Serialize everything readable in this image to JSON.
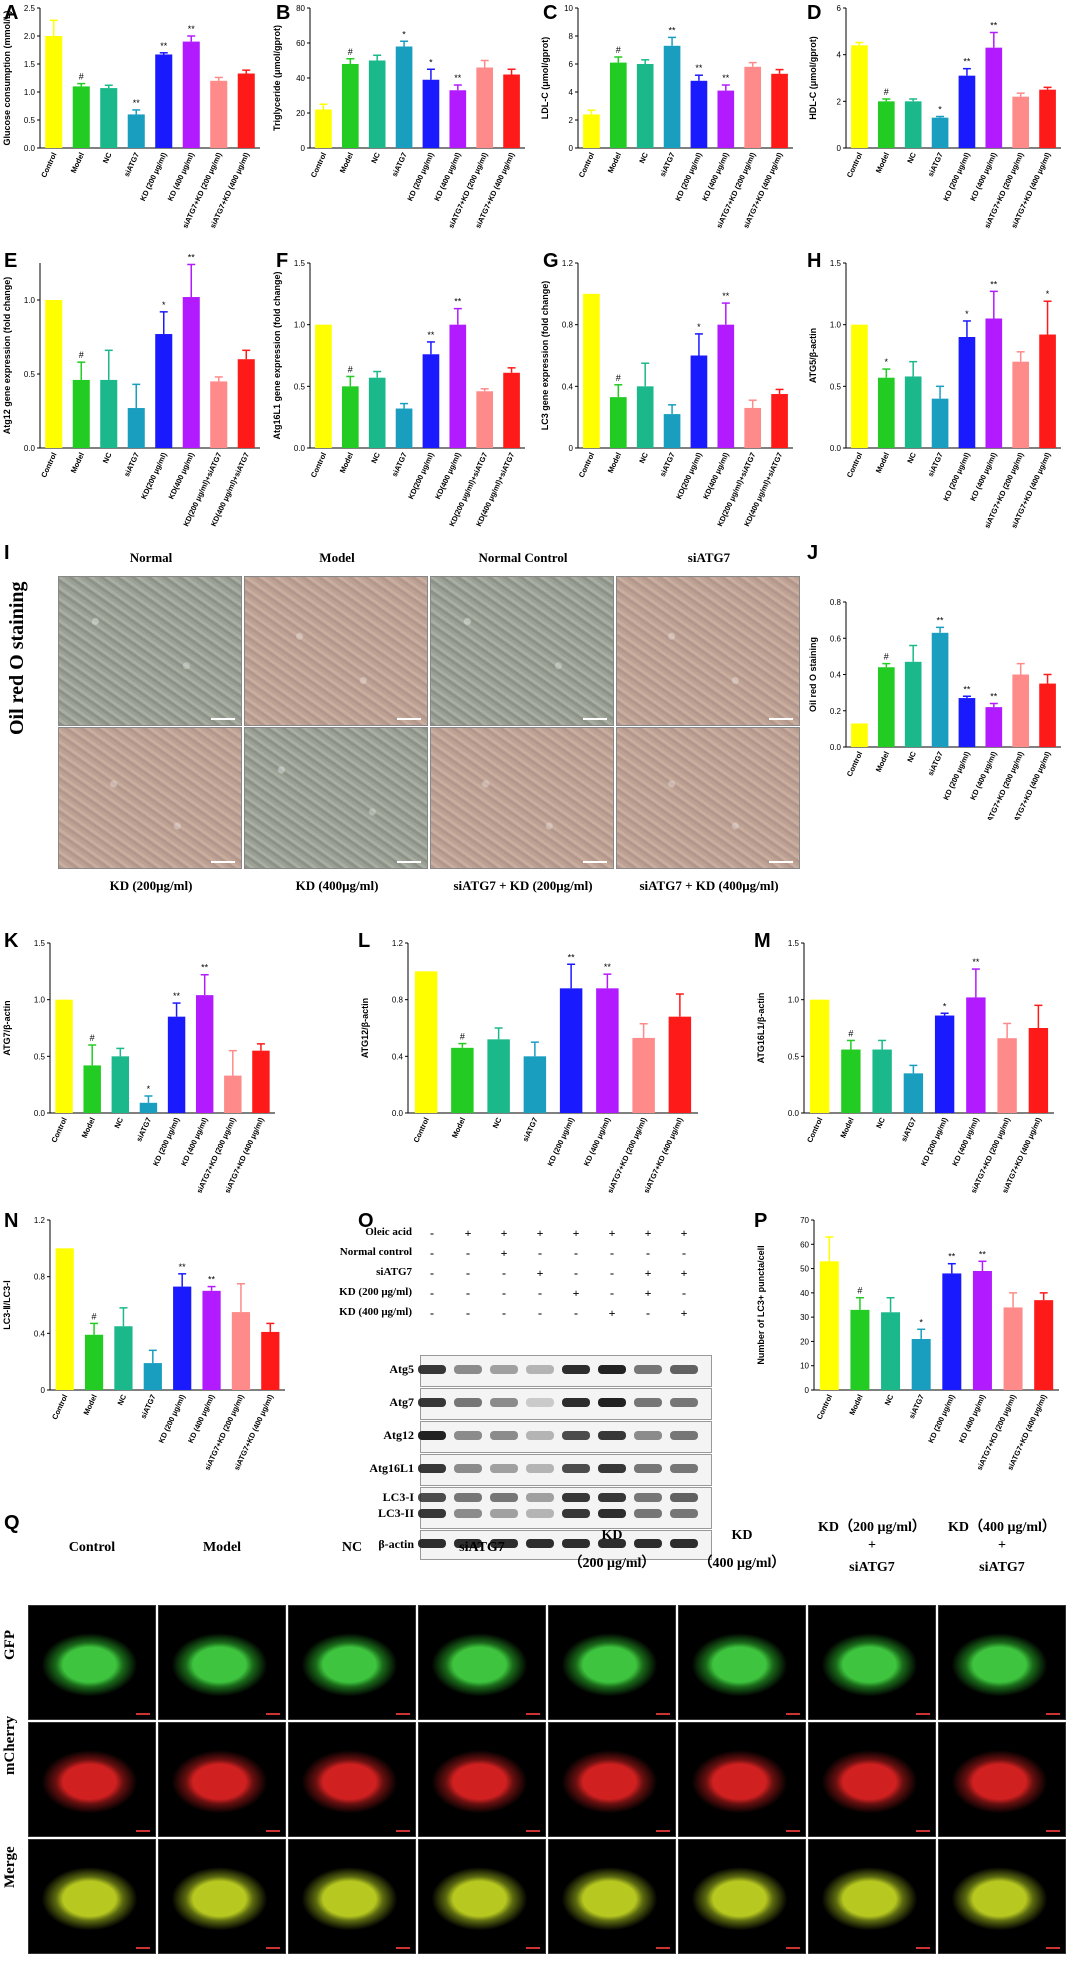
{
  "colors": [
    "#ffff00",
    "#22cc22",
    "#1ab88a",
    "#1a9ec0",
    "#1a1aff",
    "#b21aff",
    "#ff8a8a",
    "#ff1a1a"
  ],
  "panels": {
    "A": {
      "letter": "A"
    },
    "B": {
      "letter": "B"
    },
    "C": {
      "letter": "C"
    },
    "D": {
      "letter": "D"
    },
    "E": {
      "letter": "E"
    },
    "F": {
      "letter": "F"
    },
    "G": {
      "letter": "G"
    },
    "H": {
      "letter": "H"
    },
    "I": {
      "letter": "I"
    },
    "J": {
      "letter": "J"
    },
    "K": {
      "letter": "K"
    },
    "L": {
      "letter": "L"
    },
    "M": {
      "letter": "M"
    },
    "N": {
      "letter": "N"
    },
    "O": {
      "letter": "O"
    },
    "P": {
      "letter": "P"
    },
    "Q": {
      "letter": "Q"
    }
  },
  "chart_data": [
    {
      "panel": "A",
      "type": "bar",
      "ylabel": "Glucose consumption (mmol/L)",
      "ylim": [
        0,
        2.5
      ],
      "yticks": [
        "0.0",
        "0.5",
        "1.0",
        "1.5",
        "2.0",
        "2.5"
      ],
      "categories": [
        "Control",
        "Model",
        "NC",
        "siATG7",
        "KD (200 μg/ml)",
        "KD (400 μg/ml)",
        "siATG7+KD (200 μg/ml)",
        "siATG7+KD (400 μg/ml)"
      ],
      "values": [
        2.0,
        1.1,
        1.07,
        0.6,
        1.67,
        1.9,
        1.2,
        1.33
      ],
      "errors": [
        0.28,
        0.05,
        0.05,
        0.08,
        0.03,
        0.1,
        0.06,
        0.06
      ],
      "marks": [
        "",
        "#",
        "",
        "**",
        "**",
        "**",
        "",
        ""
      ]
    },
    {
      "panel": "B",
      "type": "bar",
      "ylabel": "Triglyceride (μmol/gprot)",
      "ylim": [
        0,
        80
      ],
      "yticks": [
        "0",
        "20",
        "40",
        "60",
        "80"
      ],
      "categories": [
        "Control",
        "Model",
        "NC",
        "siATG7",
        "KD (200 μg/ml)",
        "KD (400 μg/ml)",
        "siATG7+KD (200 μg/ml)",
        "siATG7+KD (400 μg/ml)"
      ],
      "values": [
        22,
        48,
        50,
        58,
        39,
        33,
        46,
        42
      ],
      "errors": [
        3,
        3,
        3,
        3,
        6,
        3,
        4,
        3
      ],
      "marks": [
        "",
        "#",
        "",
        "*",
        "*",
        "**",
        "",
        ""
      ]
    },
    {
      "panel": "C",
      "type": "bar",
      "ylabel": "LDL-C (μmol/gprot)",
      "ylim": [
        0,
        10
      ],
      "yticks": [
        "0",
        "2",
        "4",
        "6",
        "8",
        "10"
      ],
      "categories": [
        "Control",
        "Model",
        "NC",
        "siATG7",
        "KD (200 μg/ml)",
        "KD (400 μg/ml)",
        "siATG7+KD (200 μg/ml)",
        "siATG7+KD (400 μg/ml)"
      ],
      "values": [
        2.4,
        6.1,
        6.0,
        7.3,
        4.8,
        4.1,
        5.8,
        5.3
      ],
      "errors": [
        0.3,
        0.4,
        0.3,
        0.6,
        0.4,
        0.4,
        0.3,
        0.3
      ],
      "marks": [
        "",
        "#",
        "",
        "**",
        "**",
        "**",
        "",
        ""
      ]
    },
    {
      "panel": "D",
      "type": "bar",
      "ylabel": "HDL-C (μmol/gprot)",
      "ylim": [
        0,
        6
      ],
      "yticks": [
        "0",
        "2",
        "4",
        "6"
      ],
      "categories": [
        "Control",
        "Model",
        "NC",
        "siATG7",
        "KD (200 μg/ml)",
        "KD (400 μg/ml)",
        "siATG7+KD (200 μg/ml)",
        "siATG7+KD (400 μg/ml)"
      ],
      "values": [
        4.4,
        2.0,
        2.0,
        1.3,
        3.1,
        4.3,
        2.2,
        2.5
      ],
      "errors": [
        0.12,
        0.1,
        0.1,
        0.05,
        0.3,
        0.65,
        0.15,
        0.1
      ],
      "marks": [
        "",
        "#",
        "",
        "*",
        "**",
        "**",
        "",
        ""
      ]
    },
    {
      "panel": "E",
      "type": "bar",
      "ylabel": "Atg12 gene expression (fold change)",
      "ylim": [
        0,
        1.25
      ],
      "yticks": [
        "0.0",
        "0.5",
        "1.0"
      ],
      "categories": [
        "Control",
        "Model",
        "NC",
        "siATG7",
        "KD(200 μg/ml)",
        "KD(400 μg/ml)",
        "KD(200 μg/ml)+siATG7",
        "KD(400 μg/ml)+siATG7"
      ],
      "values": [
        1.0,
        0.46,
        0.46,
        0.27,
        0.77,
        1.02,
        0.45,
        0.6
      ],
      "errors": [
        0.0,
        0.12,
        0.2,
        0.16,
        0.15,
        0.22,
        0.03,
        0.06
      ],
      "marks": [
        "",
        "#",
        "",
        "",
        "*",
        "**",
        "",
        ""
      ]
    },
    {
      "panel": "F",
      "type": "bar",
      "ylabel": "Atg16L1 gene expression (fold change)",
      "ylim": [
        0,
        1.5
      ],
      "yticks": [
        "0.0",
        "0.5",
        "1.0",
        "1.5"
      ],
      "categories": [
        "Control",
        "Model",
        "NC",
        "siATG7",
        "KD(200 μg/ml)",
        "KD(400 μg/ml)",
        "KD(200 μg/ml)+siATG7",
        "KD(400 μg/ml)+siATG7"
      ],
      "values": [
        1.0,
        0.5,
        0.57,
        0.32,
        0.76,
        1.0,
        0.46,
        0.61
      ],
      "errors": [
        0.0,
        0.08,
        0.05,
        0.04,
        0.1,
        0.13,
        0.02,
        0.04
      ],
      "marks": [
        "",
        "#",
        "",
        "",
        "**",
        "**",
        "",
        ""
      ]
    },
    {
      "panel": "G",
      "type": "bar",
      "ylabel": "LC3 gene expression (fold change)",
      "ylim": [
        0,
        1.2
      ],
      "yticks": [
        "0",
        "0.4",
        "0.8",
        "1.2"
      ],
      "categories": [
        "Control",
        "Model",
        "NC",
        "siATG7",
        "KD(200 μg/ml)",
        "KD(400 μg/ml)",
        "KD(200 μg/ml)+siATG7",
        "KD(400 μg/ml)+siATG7"
      ],
      "values": [
        1.0,
        0.33,
        0.4,
        0.22,
        0.6,
        0.8,
        0.26,
        0.35
      ],
      "errors": [
        0.0,
        0.08,
        0.15,
        0.06,
        0.14,
        0.14,
        0.05,
        0.03
      ],
      "marks": [
        "",
        "#",
        "",
        "",
        "*",
        "**",
        "",
        ""
      ]
    },
    {
      "panel": "H",
      "type": "bar",
      "ylabel": "ATG5/β-actin",
      "ylim": [
        0,
        1.5
      ],
      "yticks": [
        "0.0",
        "0.5",
        "1.0",
        "1.5"
      ],
      "categories": [
        "Control",
        "Model",
        "NC",
        "siATG7",
        "KD (200 μg/ml)",
        "KD (400 μg/ml)",
        "siATG7+KD (200 μg/ml)",
        "siATG7+KD (400 μg/ml)"
      ],
      "values": [
        1.0,
        0.57,
        0.58,
        0.4,
        0.9,
        1.05,
        0.7,
        0.92
      ],
      "errors": [
        0.0,
        0.07,
        0.12,
        0.1,
        0.13,
        0.22,
        0.08,
        0.27
      ],
      "marks": [
        "",
        "*",
        "",
        "",
        "*",
        "**",
        "",
        "*"
      ]
    },
    {
      "panel": "J",
      "type": "bar",
      "ylabel": "Oil red O staining",
      "ylim": [
        0,
        0.8
      ],
      "yticks": [
        "0.0",
        "0.2",
        "0.4",
        "0.6",
        "0.8"
      ],
      "categories": [
        "Control",
        "Model",
        "NC",
        "siATG7",
        "KD (200 μg/ml)",
        "KD (400 μg/ml)",
        "siATG7+KD (200 μg/ml)",
        "siATG7+KD (400 μg/ml)"
      ],
      "values": [
        0.13,
        0.44,
        0.47,
        0.63,
        0.27,
        0.22,
        0.4,
        0.35
      ],
      "errors": [
        0.0,
        0.02,
        0.09,
        0.03,
        0.01,
        0.02,
        0.06,
        0.05
      ],
      "marks": [
        "",
        "#",
        "",
        "**",
        "**",
        "**",
        "",
        ""
      ]
    },
    {
      "panel": "K",
      "type": "bar",
      "ylabel": "ATG7/β-actin",
      "ylim": [
        0,
        1.5
      ],
      "yticks": [
        "0.0",
        "0.5",
        "1.0",
        "1.5"
      ],
      "categories": [
        "Control",
        "Model",
        "NC",
        "siATG7",
        "KD (200 μg/ml)",
        "KD (400 μg/ml)",
        "siATG7+KD (200 μg/ml)",
        "siATG7+KD (400 μg/ml)"
      ],
      "values": [
        1.0,
        0.42,
        0.5,
        0.09,
        0.85,
        1.04,
        0.33,
        0.55
      ],
      "errors": [
        0.0,
        0.18,
        0.07,
        0.06,
        0.12,
        0.18,
        0.22,
        0.06
      ],
      "marks": [
        "",
        "#",
        "",
        "*",
        "**",
        "**",
        "",
        ""
      ]
    },
    {
      "panel": "L",
      "type": "bar",
      "ylabel": "ATG12/β-actin",
      "ylim": [
        0,
        1.2
      ],
      "yticks": [
        "0.0",
        "0.4",
        "0.8",
        "1.2"
      ],
      "categories": [
        "Control",
        "Model",
        "NC",
        "siATG7",
        "KD (200 μg/ml)",
        "KD (400 μg/ml)",
        "siATG7+KD (200 μg/ml)",
        "siATG7+KD (400 μg/ml)"
      ],
      "values": [
        1.0,
        0.46,
        0.52,
        0.4,
        0.88,
        0.88,
        0.53,
        0.68
      ],
      "errors": [
        0.0,
        0.03,
        0.08,
        0.1,
        0.17,
        0.1,
        0.1,
        0.16
      ],
      "marks": [
        "",
        "#",
        "",
        "",
        "**",
        "**",
        "",
        ""
      ]
    },
    {
      "panel": "M",
      "type": "bar",
      "ylabel": "ATG16L1/β-actin",
      "ylim": [
        0,
        1.5
      ],
      "yticks": [
        "0.0",
        "0.5",
        "1.0",
        "1.5"
      ],
      "categories": [
        "Control",
        "Model",
        "NC",
        "siATG7",
        "KD (200 μg/ml)",
        "KD (400 μg/ml)",
        "siATG7+KD (200 μg/ml)",
        "siATG7+KD (400 μg/ml)"
      ],
      "values": [
        1.0,
        0.56,
        0.56,
        0.35,
        0.86,
        1.02,
        0.66,
        0.75
      ],
      "errors": [
        0.0,
        0.08,
        0.08,
        0.07,
        0.02,
        0.25,
        0.13,
        0.2
      ],
      "marks": [
        "",
        "#",
        "",
        "",
        "*",
        "**",
        "",
        ""
      ]
    },
    {
      "panel": "N",
      "type": "bar",
      "ylabel": "LC3-Ⅱ/LC3-Ⅰ",
      "ylim": [
        0,
        1.2
      ],
      "yticks": [
        "0",
        "0.4",
        "0.8",
        "1.2"
      ],
      "categories": [
        "Control",
        "Model",
        "NC",
        "siATG7",
        "KD (200 μg/ml)",
        "KD (400 μg/ml)",
        "siATG7+KD (200 μg/ml)",
        "siATG7+KD (400 μg/ml)"
      ],
      "values": [
        1.0,
        0.39,
        0.45,
        0.19,
        0.73,
        0.7,
        0.55,
        0.41
      ],
      "errors": [
        0.0,
        0.08,
        0.13,
        0.09,
        0.09,
        0.03,
        0.2,
        0.06
      ],
      "marks": [
        "",
        "#",
        "",
        "",
        "**",
        "**",
        "",
        ""
      ]
    },
    {
      "panel": "P",
      "type": "bar",
      "ylabel": "Number of LC3+ puncta/cell",
      "ylim": [
        0,
        70
      ],
      "yticks": [
        "0",
        "10",
        "20",
        "30",
        "40",
        "50",
        "60",
        "70"
      ],
      "categories": [
        "Control",
        "Model",
        "NC",
        "siATG7",
        "KD (200 μg/ml)",
        "KD (400 μg/ml)",
        "siATG7+KD (200 μg/ml)",
        "siATG7+KD (400 μg/ml)"
      ],
      "values": [
        53,
        33,
        32,
        21,
        48,
        49,
        34,
        37
      ],
      "errors": [
        10,
        5,
        6,
        4,
        4,
        4,
        6,
        3
      ],
      "marks": [
        "",
        "#",
        "",
        "*",
        "**",
        "**",
        "",
        ""
      ]
    }
  ],
  "oil": {
    "side_label": "Oil red O staining",
    "top": [
      "Normal",
      "Model",
      "Normal Control",
      "siATG7"
    ],
    "bottom": [
      "KD (200μg/ml)",
      "KD (400μg/ml)",
      "siATG7 + KD (200μg/ml)",
      "siATG7 + KD (400μg/ml)"
    ]
  },
  "blot": {
    "conditions": [
      {
        "label": "Oleic acid",
        "signs": [
          "-",
          "+",
          "+",
          "+",
          "+",
          "+",
          "+",
          "+"
        ]
      },
      {
        "label": "Normal control",
        "signs": [
          "-",
          "-",
          "+",
          "-",
          "-",
          "-",
          "-",
          "-"
        ]
      },
      {
        "label": "siATG7",
        "signs": [
          "-",
          "-",
          "-",
          "+",
          "-",
          "-",
          "+",
          "+"
        ]
      },
      {
        "label": "KD (200 μg/ml)",
        "signs": [
          "-",
          "-",
          "-",
          "-",
          "+",
          "-",
          "+",
          "-"
        ]
      },
      {
        "label": "KD (400 μg/ml)",
        "signs": [
          "-",
          "-",
          "-",
          "-",
          "-",
          "+",
          "-",
          "+"
        ]
      }
    ],
    "rows": [
      "Atg5",
      "Atg7",
      "Atg12",
      "Atg16L1",
      "LC3-I",
      "LC3-II",
      "β-actin"
    ]
  },
  "q": {
    "columns": [
      {
        "l1": "Control",
        "l2": "",
        "l3": ""
      },
      {
        "l1": "Model",
        "l2": "",
        "l3": ""
      },
      {
        "l1": "NC",
        "l2": "",
        "l3": ""
      },
      {
        "l1": "siATG7",
        "l2": "",
        "l3": ""
      },
      {
        "l1": "KD",
        "l2": "（200 μg/ml）",
        "l3": ""
      },
      {
        "l1": "KD",
        "l2": "（400 μg/ml）",
        "l3": ""
      },
      {
        "l1": "KD（200 μg/ml）",
        "l2": "+",
        "l3": "siATG7"
      },
      {
        "l1": "KD（400 μg/ml）",
        "l2": "+",
        "l3": "siATG7"
      }
    ],
    "rows": [
      "GFP",
      "mCherry",
      "Merge"
    ]
  }
}
